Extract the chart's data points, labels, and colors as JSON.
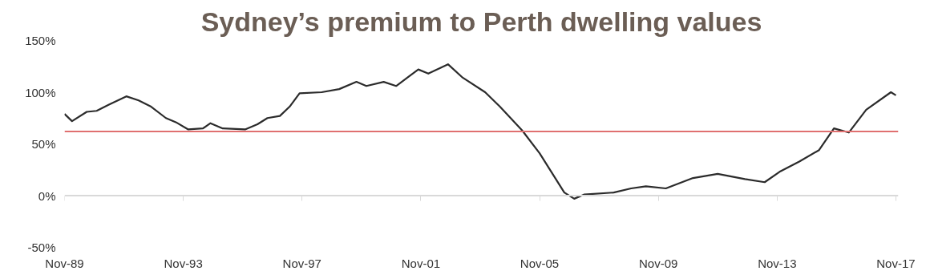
{
  "chart_data": {
    "type": "line",
    "title": "Sydney’s premium to Perth dwelling values",
    "x": [
      "1989-11",
      "1990-02",
      "1990-08",
      "1990-12",
      "1991-05",
      "1991-12",
      "1992-05",
      "1992-10",
      "1993-04",
      "1993-08",
      "1994-01",
      "1994-07",
      "1994-10",
      "1995-03",
      "1995-12",
      "1996-05",
      "1996-09",
      "1997-02",
      "1997-06",
      "1997-10",
      "1998-07",
      "1999-02",
      "1999-09",
      "2000-01",
      "2000-08",
      "2001-01",
      "2001-10",
      "2002-02",
      "2002-10",
      "2003-04",
      "2004-01",
      "2004-07",
      "2005-04",
      "2005-11",
      "2006-09",
      "2007-01",
      "2007-05",
      "2008-05",
      "2008-12",
      "2009-06",
      "2010-02",
      "2011-01",
      "2011-11",
      "2012-10",
      "2013-06",
      "2013-12",
      "2014-08",
      "2015-04",
      "2015-10",
      "2016-04",
      "2016-11",
      "2017-09",
      "2017-11"
    ],
    "series": [
      {
        "color": "#2b2b2b",
        "values": [
          79,
          72,
          81,
          82,
          88,
          96,
          92,
          86,
          75,
          71,
          64,
          65,
          70,
          65,
          64,
          69,
          75,
          77,
          86,
          99,
          100,
          103,
          110,
          106,
          110,
          106,
          122,
          118,
          127,
          114,
          100,
          86,
          63,
          41,
          3,
          -3,
          1,
          3,
          7,
          9,
          7,
          17,
          21,
          16,
          13,
          23,
          33,
          44,
          65,
          61,
          83,
          100,
          97
        ]
      }
    ],
    "xlim": [
      "1989-11",
      "2017-12"
    ],
    "ylim": [
      -50,
      150
    ],
    "xticks": [
      {
        "value": "1989-11",
        "label": "Nov-89"
      },
      {
        "value": "1993-11",
        "label": "Nov-93"
      },
      {
        "value": "1997-11",
        "label": "Nov-97"
      },
      {
        "value": "2001-11",
        "label": "Nov-01"
      },
      {
        "value": "2005-11",
        "label": "Nov-05"
      },
      {
        "value": "2009-11",
        "label": "Nov-09"
      },
      {
        "value": "2013-11",
        "label": "Nov-13"
      },
      {
        "value": "2017-11",
        "label": "Nov-17"
      }
    ],
    "yticks": [
      {
        "value": -50,
        "label": "-50%"
      },
      {
        "value": 0,
        "label": "0%"
      },
      {
        "value": 50,
        "label": "50%"
      },
      {
        "value": 100,
        "label": "100%"
      },
      {
        "value": 150,
        "label": "150%"
      }
    ],
    "ref_lines": [
      {
        "axis": "y",
        "value": 0,
        "color": "#d9d9d9"
      },
      {
        "axis": "y",
        "value": 62,
        "color": "#e07070"
      }
    ],
    "grid": false,
    "marker": "none",
    "line_style": "solid"
  }
}
